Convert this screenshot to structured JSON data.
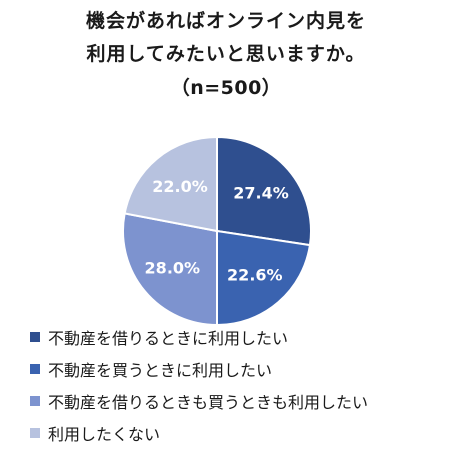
{
  "chart_data": {
    "type": "pie",
    "title": [
      "機会があればオンライン内見を",
      "利用してみたいと思いますか。",
      "（n=500）"
    ],
    "slices": [
      {
        "label": "不動産を借りるときに利用したい",
        "value": 27.4,
        "display": "27.4%",
        "color": "#2f4f8f"
      },
      {
        "label": "不動産を買うときに利用したい",
        "value": 22.6,
        "display": "22.6%",
        "color": "#3a63b0"
      },
      {
        "label": "不動産を借りるときも買うときも利用したい",
        "value": 28.0,
        "display": "28.0%",
        "color": "#7d93cf"
      },
      {
        "label": "利用したくない",
        "value": 22.0,
        "display": "22.0%",
        "color": "#b7c2df"
      }
    ],
    "legend_position": "bottom-left"
  }
}
